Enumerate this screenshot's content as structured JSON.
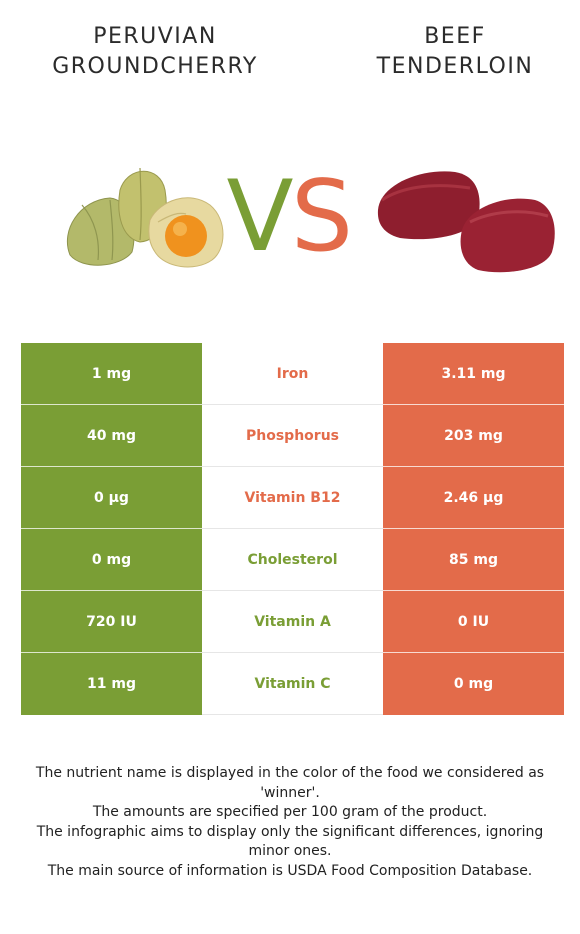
{
  "left_food": {
    "title_lines": [
      "PERUVIAN",
      "GROUNDCHERRY"
    ],
    "color": "#7a9e35"
  },
  "right_food": {
    "title_lines": [
      "BEEF",
      "TENDERLOIN"
    ],
    "color": "#e36b4a"
  },
  "vs": {
    "v": "V",
    "s": "S"
  },
  "rows": [
    {
      "left": "1 mg",
      "nutrient": "Iron",
      "right": "3.11 mg",
      "winner": "right"
    },
    {
      "left": "40 mg",
      "nutrient": "Phosphorus",
      "right": "203 mg",
      "winner": "right"
    },
    {
      "left": "0 µg",
      "nutrient": "Vitamin B12",
      "right": "2.46 µg",
      "winner": "right"
    },
    {
      "left": "0 mg",
      "nutrient": "Cholesterol",
      "right": "85 mg",
      "winner": "left"
    },
    {
      "left": "720 IU",
      "nutrient": "Vitamin A",
      "right": "0 IU",
      "winner": "left"
    },
    {
      "left": "11 mg",
      "nutrient": "Vitamin C",
      "right": "0 mg",
      "winner": "left"
    }
  ],
  "footer": [
    "The nutrient name is displayed in the color of the food we considered as 'winner'.",
    "The amounts are specified per 100 gram of the product.",
    "The infographic aims to display only the significant differences, ignoring minor ones.",
    "The main source of information is USDA Food Composition Database."
  ]
}
